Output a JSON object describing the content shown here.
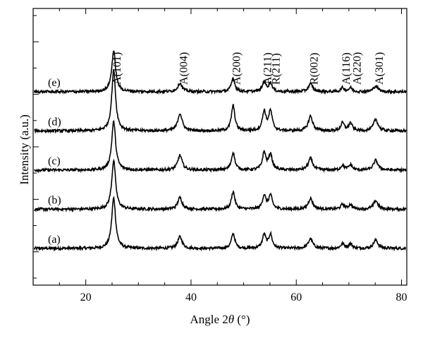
{
  "chart_data": {
    "type": "line",
    "title": "",
    "xlabel_prefix": "Angle 2",
    "xlabel_symbol": "θ",
    "xlabel_suffix": " (°)",
    "ylabel": "Intensity (a.u.)",
    "xlim": [
      10,
      81
    ],
    "xticks": [
      20,
      40,
      60,
      80
    ],
    "y_tick_count": 11,
    "grid": false,
    "legend": "none",
    "line_color": "#000000",
    "series": [
      {
        "name": "(a)",
        "offset": 0
      },
      {
        "name": "(b)",
        "offset": 1
      },
      {
        "name": "(c)",
        "offset": 2
      },
      {
        "name": "(d)",
        "offset": 3
      },
      {
        "name": "(e)",
        "offset": 4
      }
    ],
    "peaks": [
      {
        "x": 25.3,
        "h": [
          1.3,
          1.25,
          1.25,
          1.55,
          1.05
        ],
        "w": 0.45
      },
      {
        "x": 37.9,
        "h": [
          0.3,
          0.3,
          0.38,
          0.45,
          0.22
        ],
        "w": 0.5
      },
      {
        "x": 48.0,
        "h": [
          0.38,
          0.45,
          0.45,
          0.65,
          0.35
        ],
        "w": 0.4
      },
      {
        "x": 53.9,
        "h": [
          0.35,
          0.35,
          0.45,
          0.5,
          0.25
        ],
        "w": 0.4
      },
      {
        "x": 55.1,
        "h": [
          0.35,
          0.35,
          0.4,
          0.5,
          0.22
        ],
        "w": 0.4
      },
      {
        "x": 62.7,
        "h": [
          0.25,
          0.28,
          0.3,
          0.38,
          0.2
        ],
        "w": 0.5
      },
      {
        "x": 68.8,
        "h": [
          0.12,
          0.12,
          0.12,
          0.2,
          0.1
        ],
        "w": 0.4
      },
      {
        "x": 70.3,
        "h": [
          0.12,
          0.12,
          0.13,
          0.2,
          0.1
        ],
        "w": 0.4
      },
      {
        "x": 75.1,
        "h": [
          0.22,
          0.22,
          0.25,
          0.3,
          0.15
        ],
        "w": 0.5
      }
    ],
    "annotations": [
      {
        "text": "A(101)",
        "x": 25.3
      },
      {
        "text": "A(004)",
        "x": 37.9
      },
      {
        "text": "A(200)",
        "x": 48.0
      },
      {
        "text": "A(211)",
        "x": 53.9
      },
      {
        "text": "R(211)",
        "x": 55.5
      },
      {
        "text": "R(002)",
        "x": 62.7
      },
      {
        "text": "A(116)",
        "x": 68.8
      },
      {
        "text": "A(220)",
        "x": 70.9
      },
      {
        "text": "A(301)",
        "x": 75.1
      }
    ]
  }
}
